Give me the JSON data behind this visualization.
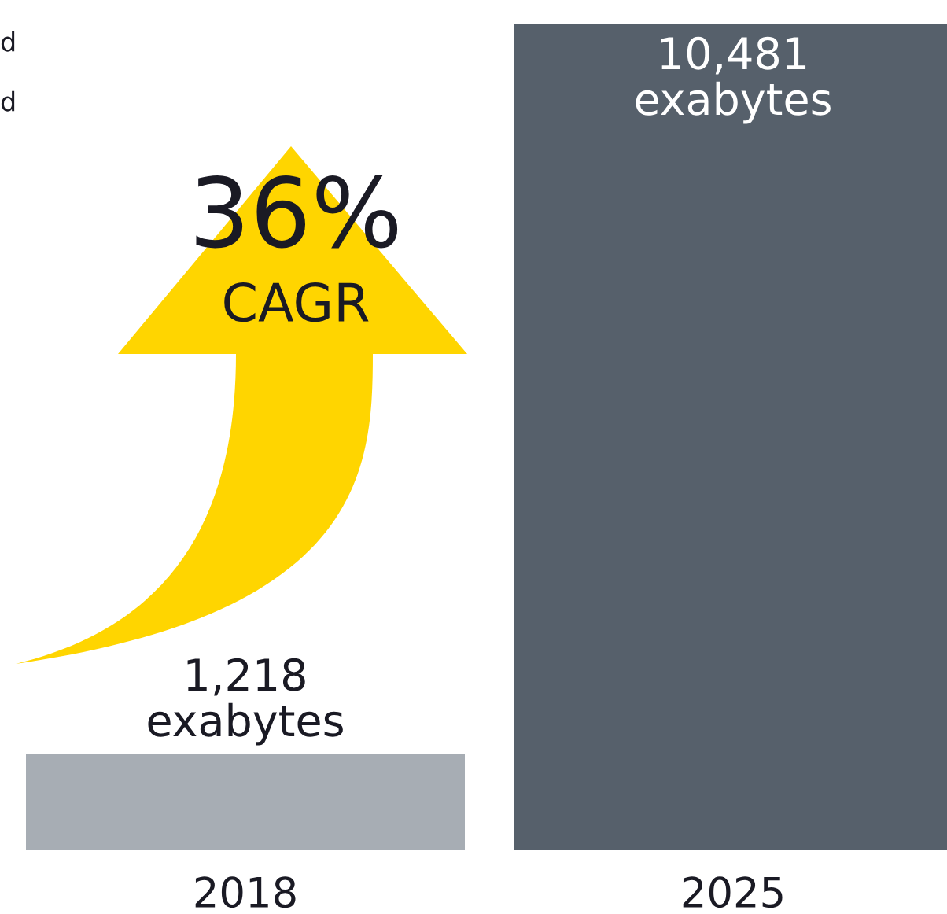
{
  "chart_data": {
    "type": "bar",
    "categories": [
      "2018",
      "2025"
    ],
    "values": [
      1218,
      10481
    ],
    "colors": [
      "#a7adb4",
      "#56606b"
    ],
    "value_labels": [
      "1,218\nexabytes",
      "10,481\nexabytes"
    ],
    "annotations": [
      "d",
      "d",
      "36%",
      "CAGR"
    ]
  }
}
